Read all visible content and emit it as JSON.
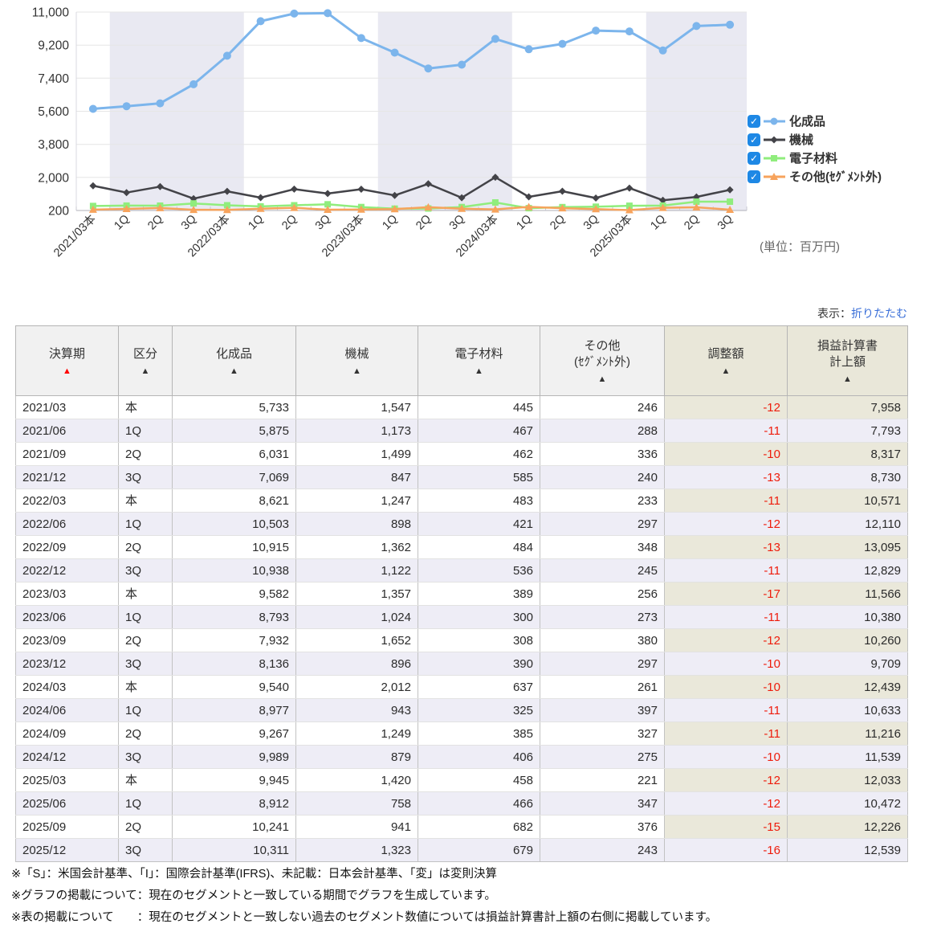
{
  "chart_data": {
    "type": "line",
    "title": "",
    "categories": [
      "2021/03本",
      "1Q",
      "2Q",
      "3Q",
      "2022/03本",
      "1Q",
      "2Q",
      "3Q",
      "2023/03本",
      "1Q",
      "2Q",
      "3Q",
      "2024/03本",
      "1Q",
      "2Q",
      "3Q",
      "2025/03本",
      "1Q",
      "2Q",
      "3Q"
    ],
    "series": [
      {
        "name": "化成品",
        "color": "#7cb5ec",
        "marker": "circle",
        "checked": true,
        "values": [
          5733,
          5875,
          6031,
          7069,
          8621,
          10503,
          10915,
          10938,
          9582,
          8793,
          7932,
          8136,
          9540,
          8977,
          9267,
          9989,
          9945,
          8912,
          10241,
          10311
        ]
      },
      {
        "name": "機械",
        "color": "#434348",
        "marker": "diamond",
        "checked": true,
        "values": [
          1547,
          1173,
          1499,
          847,
          1247,
          898,
          1362,
          1122,
          1357,
          1024,
          1652,
          896,
          2012,
          943,
          1249,
          879,
          1420,
          758,
          941,
          1323
        ]
      },
      {
        "name": "電子材料",
        "color": "#90ed7d",
        "marker": "square",
        "checked": true,
        "values": [
          445,
          467,
          462,
          585,
          483,
          421,
          484,
          536,
          389,
          300,
          308,
          390,
          637,
          325,
          385,
          406,
          458,
          466,
          682,
          679
        ]
      },
      {
        "name": "その他(ｾｸﾞﾒﾝﾄ外)",
        "color": "#f7a35c",
        "marker": "triangle",
        "checked": true,
        "values": [
          246,
          288,
          336,
          240,
          233,
          297,
          348,
          245,
          256,
          273,
          380,
          297,
          261,
          397,
          327,
          275,
          221,
          347,
          376,
          243
        ]
      }
    ],
    "yticks": [
      200,
      2000,
      3800,
      5600,
      7400,
      9200,
      11000
    ],
    "ylim": [
      200,
      11000
    ],
    "grid": "horizontal",
    "legend_position": "right",
    "plot_band_ranges": [
      [
        1,
        5
      ],
      [
        9,
        13
      ],
      [
        17,
        20
      ]
    ],
    "plot_band_color": "#e9e9f2",
    "unit_label": "(単位：百万円)",
    "checkmark": "✓"
  },
  "toolbar": {
    "display_label": "表示：",
    "collapse_link": "折りたたむ"
  },
  "table": {
    "columns": [
      {
        "label": "決算期",
        "arrow": "▲",
        "arrow_red": true,
        "beige": false
      },
      {
        "label": "区分",
        "arrow": "▲",
        "arrow_red": false,
        "beige": false
      },
      {
        "label": "化成品",
        "arrow": "▲",
        "arrow_red": false,
        "beige": false
      },
      {
        "label": "機械",
        "arrow": "▲",
        "arrow_red": false,
        "beige": false
      },
      {
        "label": "電子材料",
        "arrow": "▲",
        "arrow_red": false,
        "beige": false
      },
      {
        "label": "その他\n(ｾｸﾞﾒﾝﾄ外)",
        "arrow": "▲",
        "arrow_red": false,
        "beige": false
      },
      {
        "label": "調整額",
        "arrow": "▲",
        "arrow_red": false,
        "beige": true
      },
      {
        "label": "損益計算書\n計上額",
        "arrow": "▲",
        "arrow_red": false,
        "beige": true
      }
    ],
    "rows": [
      [
        "2021/03",
        "本",
        "5,733",
        "1,547",
        "445",
        "246",
        "-12",
        "7,958"
      ],
      [
        "2021/06",
        "1Q",
        "5,875",
        "1,173",
        "467",
        "288",
        "-11",
        "7,793"
      ],
      [
        "2021/09",
        "2Q",
        "6,031",
        "1,499",
        "462",
        "336",
        "-10",
        "8,317"
      ],
      [
        "2021/12",
        "3Q",
        "7,069",
        "847",
        "585",
        "240",
        "-13",
        "8,730"
      ],
      [
        "2022/03",
        "本",
        "8,621",
        "1,247",
        "483",
        "233",
        "-11",
        "10,571"
      ],
      [
        "2022/06",
        "1Q",
        "10,503",
        "898",
        "421",
        "297",
        "-12",
        "12,110"
      ],
      [
        "2022/09",
        "2Q",
        "10,915",
        "1,362",
        "484",
        "348",
        "-13",
        "13,095"
      ],
      [
        "2022/12",
        "3Q",
        "10,938",
        "1,122",
        "536",
        "245",
        "-11",
        "12,829"
      ],
      [
        "2023/03",
        "本",
        "9,582",
        "1,357",
        "389",
        "256",
        "-17",
        "11,566"
      ],
      [
        "2023/06",
        "1Q",
        "8,793",
        "1,024",
        "300",
        "273",
        "-11",
        "10,380"
      ],
      [
        "2023/09",
        "2Q",
        "7,932",
        "1,652",
        "308",
        "380",
        "-12",
        "10,260"
      ],
      [
        "2023/12",
        "3Q",
        "8,136",
        "896",
        "390",
        "297",
        "-10",
        "9,709"
      ],
      [
        "2024/03",
        "本",
        "9,540",
        "2,012",
        "637",
        "261",
        "-10",
        "12,439"
      ],
      [
        "2024/06",
        "1Q",
        "8,977",
        "943",
        "325",
        "397",
        "-11",
        "10,633"
      ],
      [
        "2024/09",
        "2Q",
        "9,267",
        "1,249",
        "385",
        "327",
        "-11",
        "11,216"
      ],
      [
        "2024/12",
        "3Q",
        "9,989",
        "879",
        "406",
        "275",
        "-10",
        "11,539"
      ],
      [
        "2025/03",
        "本",
        "9,945",
        "1,420",
        "458",
        "221",
        "-12",
        "12,033"
      ],
      [
        "2025/06",
        "1Q",
        "8,912",
        "758",
        "466",
        "347",
        "-12",
        "10,472"
      ],
      [
        "2025/09",
        "2Q",
        "10,241",
        "941",
        "682",
        "376",
        "-15",
        "12,226"
      ],
      [
        "2025/12",
        "3Q",
        "10,311",
        "1,323",
        "679",
        "243",
        "-16",
        "12,539"
      ]
    ]
  },
  "notes": [
    "※「S」：米国会計基準、「I」：国際会計基準(IFRS)、未記載：日本会計基準、「変」は変則決算",
    "※グラフの掲載について：現在のセグメントと一致している期間でグラフを生成しています。",
    "※表の掲載について　　：現在のセグメントと一致しない過去のセグメント数値については損益計算書計上額の右側に掲載しています。"
  ]
}
